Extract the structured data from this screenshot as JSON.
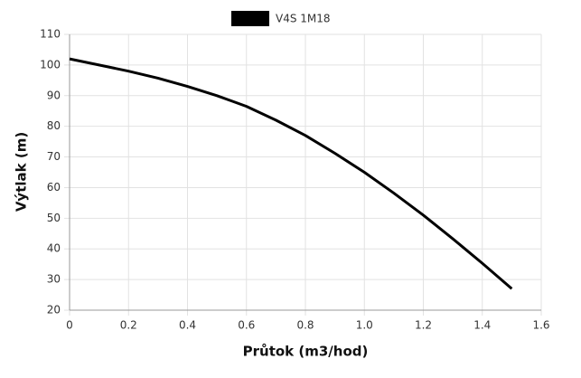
{
  "chart_data": {
    "type": "line",
    "x_label": "Průtok (m3/hod)",
    "y_label": "Výtlak (m)",
    "x": [
      0,
      0.1,
      0.2,
      0.3,
      0.4,
      0.5,
      0.6,
      0.7,
      0.8,
      0.9,
      1.0,
      1.1,
      1.2,
      1.3,
      1.4,
      1.5
    ],
    "series": [
      {
        "name": "V4S 1M18",
        "color": "#000000",
        "values": [
          102,
          100,
          98,
          95.7,
          93,
          90,
          86.5,
          82,
          77,
          71.2,
          65,
          58.2,
          51,
          43.3,
          35.3,
          27
        ]
      }
    ],
    "xlim": [
      0,
      1.6
    ],
    "xticks": [
      0,
      0.2,
      0.4,
      0.6,
      0.8,
      {
        "value": 1,
        "label": "1.0"
      },
      1.2,
      1.4,
      1.6
    ],
    "ylim": [
      20,
      110
    ],
    "yticks": [
      20,
      30,
      40,
      50,
      60,
      70,
      80,
      90,
      100,
      110
    ],
    "grid": true
  }
}
